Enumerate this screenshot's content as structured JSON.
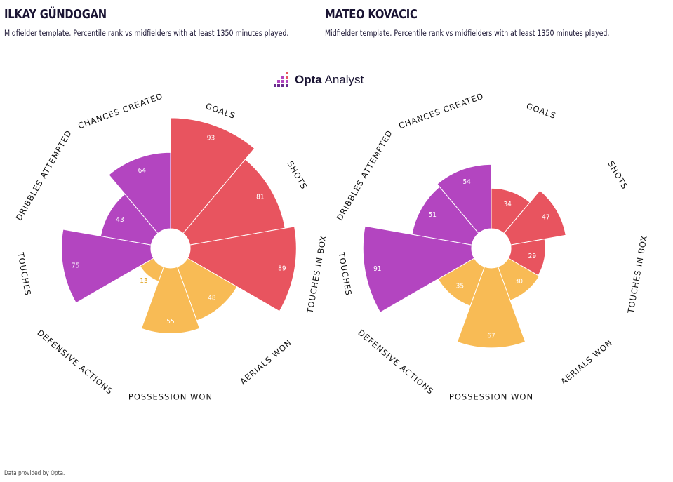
{
  "players": [
    {
      "name": "ILKAY GÜNDOGAN",
      "subtitle": "Midfielder template. Percentile rank vs midfielders with at least 1350 minutes played."
    },
    {
      "name": "MATEO KOVACIC",
      "subtitle": "Midfielder template. Percentile rank vs midfielders with at least 1350 minutes played."
    }
  ],
  "logo": {
    "bold": "Opta",
    "regular": " Analyst"
  },
  "footer": "Data provided by Opta.",
  "colors": {
    "attacking": "#e8545f",
    "possession": "#b345c0",
    "defending": "#f8bb55",
    "low_value_label": "#e0a21c"
  },
  "chart_data": [
    {
      "type": "polar-bar",
      "title": "ILKAY GÜNDOGAN",
      "categories": [
        "GOALS",
        "SHOTS",
        "TOUCHES IN BOX",
        "AERIALS WON",
        "POSSESSION WON",
        "DEFENSIVE ACTIONS",
        "TOUCHES",
        "DRIBBLES ATTEMPTED",
        "CHANCES CREATED"
      ],
      "groups": [
        "attacking",
        "attacking",
        "attacking",
        "defending",
        "defending",
        "defending",
        "possession",
        "possession",
        "possession"
      ],
      "values": [
        93,
        81,
        89,
        48,
        55,
        13,
        75,
        43,
        64
      ],
      "ylim": [
        0,
        100
      ]
    },
    {
      "type": "polar-bar",
      "title": "MATEO KOVACIC",
      "categories": [
        "GOALS",
        "SHOTS",
        "TOUCHES IN BOX",
        "AERIALS WON",
        "POSSESSION WON",
        "DEFENSIVE ACTIONS",
        "TOUCHES",
        "DRIBBLES ATTEMPTED",
        "CHANCES CREATED"
      ],
      "groups": [
        "attacking",
        "attacking",
        "attacking",
        "defending",
        "defending",
        "defending",
        "possession",
        "possession",
        "possession"
      ],
      "values": [
        34,
        47,
        29,
        30,
        67,
        35,
        91,
        51,
        54
      ],
      "ylim": [
        0,
        100
      ]
    }
  ]
}
